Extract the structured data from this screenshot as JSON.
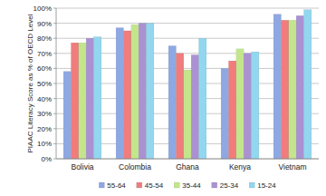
{
  "chart_data": {
    "type": "bar",
    "y_label": "PIAAC Literacy Score as % of OECD Level",
    "categories": [
      "Bolivia",
      "Colombia",
      "Ghana",
      "Kenya",
      "Vietnam"
    ],
    "series": [
      {
        "name": "55-64",
        "color": "#8da8e3",
        "values": [
          58,
          87,
          75,
          60,
          96
        ]
      },
      {
        "name": "45-54",
        "color": "#f07c7c",
        "values": [
          77,
          85,
          70,
          65,
          92
        ]
      },
      {
        "name": "35-44",
        "color": "#c3e68c",
        "values": [
          77,
          89,
          59,
          73,
          92
        ]
      },
      {
        "name": "25-34",
        "color": "#aa92d2",
        "values": [
          80,
          90,
          69,
          70,
          95
        ]
      },
      {
        "name": "15-24",
        "color": "#91d7ef",
        "values": [
          81,
          90,
          80,
          71,
          99
        ]
      }
    ],
    "ylim": [
      0,
      100
    ],
    "yticks": [
      {
        "value": 0,
        "label": "0%"
      },
      {
        "value": 10,
        "label": "10%"
      },
      {
        "value": 20,
        "label": "20%"
      },
      {
        "value": 30,
        "label": "30%"
      },
      {
        "value": 40,
        "label": "40%"
      },
      {
        "value": 50,
        "label": "50%"
      },
      {
        "value": 60,
        "label": "60%"
      },
      {
        "value": 70,
        "label": "70%"
      },
      {
        "value": 80,
        "label": "80%"
      },
      {
        "value": 90,
        "label": "90%"
      },
      {
        "value": 100,
        "label": "100%"
      }
    ],
    "grid": true,
    "legend": "bottom"
  }
}
